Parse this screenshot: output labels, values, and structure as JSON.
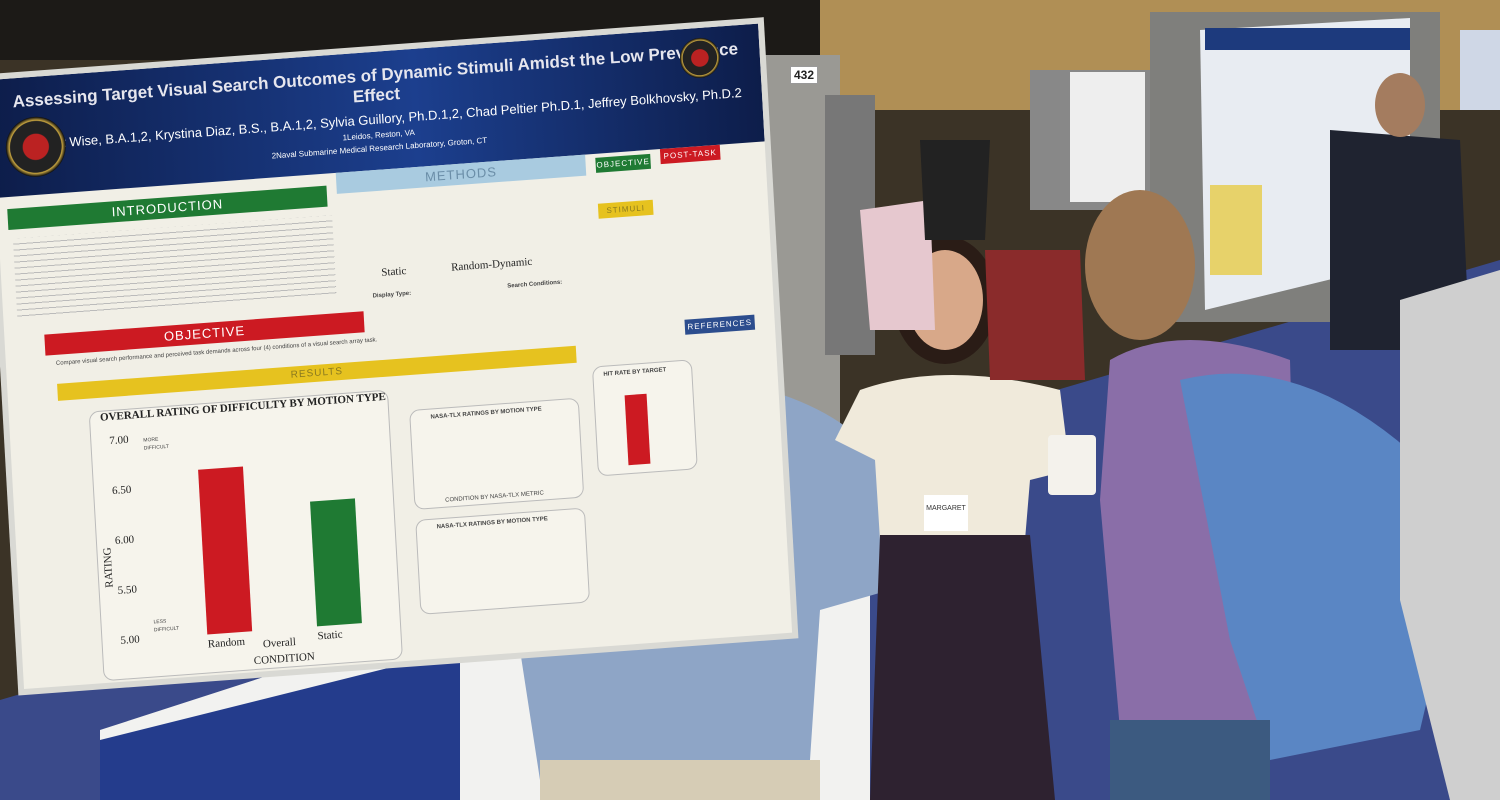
{
  "board_number": "432",
  "poster": {
    "title": "Assessing Target Visual Search Outcomes of Dynamic Stimuli Amidst the Low Prevalence Effect",
    "authors": "Margaret Wise, B.A.1,2, Krystina Diaz, B.S., B.A.1,2, Sylvia Guillory, Ph.D.1,2, Chad Peltier Ph.D.1, Jeffrey Bolkhovsky, Ph.D.2",
    "affiliation_1": "1Leidos, Reston, VA",
    "affiliation_2": "2Naval Submarine Medical Research Laboratory, Groton, CT",
    "sections": {
      "introduction": "INTRODUCTION",
      "methods": "METHODS",
      "objective": "OBJECTIVE",
      "objective_small": "OBJECTIVE",
      "stimuli": "STIMULI",
      "post_task": "POST-TASK",
      "results": "RESULTS",
      "references": "REFERENCES"
    },
    "objective_text": "Compare visual search performance and perceived task demands across four (4) conditions of a visual search array task.",
    "methods_labels": {
      "static": "Static",
      "random_dynamic": "Random-Dynamic",
      "display_type": "Display Type:",
      "search_conditions": "Search Conditions:"
    },
    "hit_rate_title": "HIT RATE BY TARGET",
    "nasa_title_1": "NASA-TLX RATINGS BY MOTION TYPE",
    "nasa_title_2": "NASA-TLX RATINGS BY MOTION TYPE",
    "nasa_xlabel_1": "CONDITION BY NASA-TLX METRIC",
    "chart": {
      "type": "bar",
      "title": "OVERALL RATING OF DIFFICULTY BY MOTION TYPE",
      "categories": [
        "Random",
        "Static"
      ],
      "values": [
        6.65,
        6.25
      ],
      "colors": [
        "#cc1a22",
        "#1f7a33"
      ],
      "ylim": [
        5.0,
        7.0
      ],
      "yticks": [
        "5.00",
        "5.50",
        "6.00",
        "6.50",
        "7.00"
      ],
      "ylabel": "RATING",
      "xlabel": "CONDITION",
      "group_label": "Overall",
      "more_label": "MORE DIFFICULT",
      "less_label": "LESS DIFFICULT"
    }
  },
  "badge_name": "MARGARET",
  "colors": {
    "green": "#1f7a33",
    "red": "#cc1a22",
    "yellow": "#e6c21f",
    "blue_header": "#1c3f8e",
    "carpet": "#3a4a8a"
  }
}
